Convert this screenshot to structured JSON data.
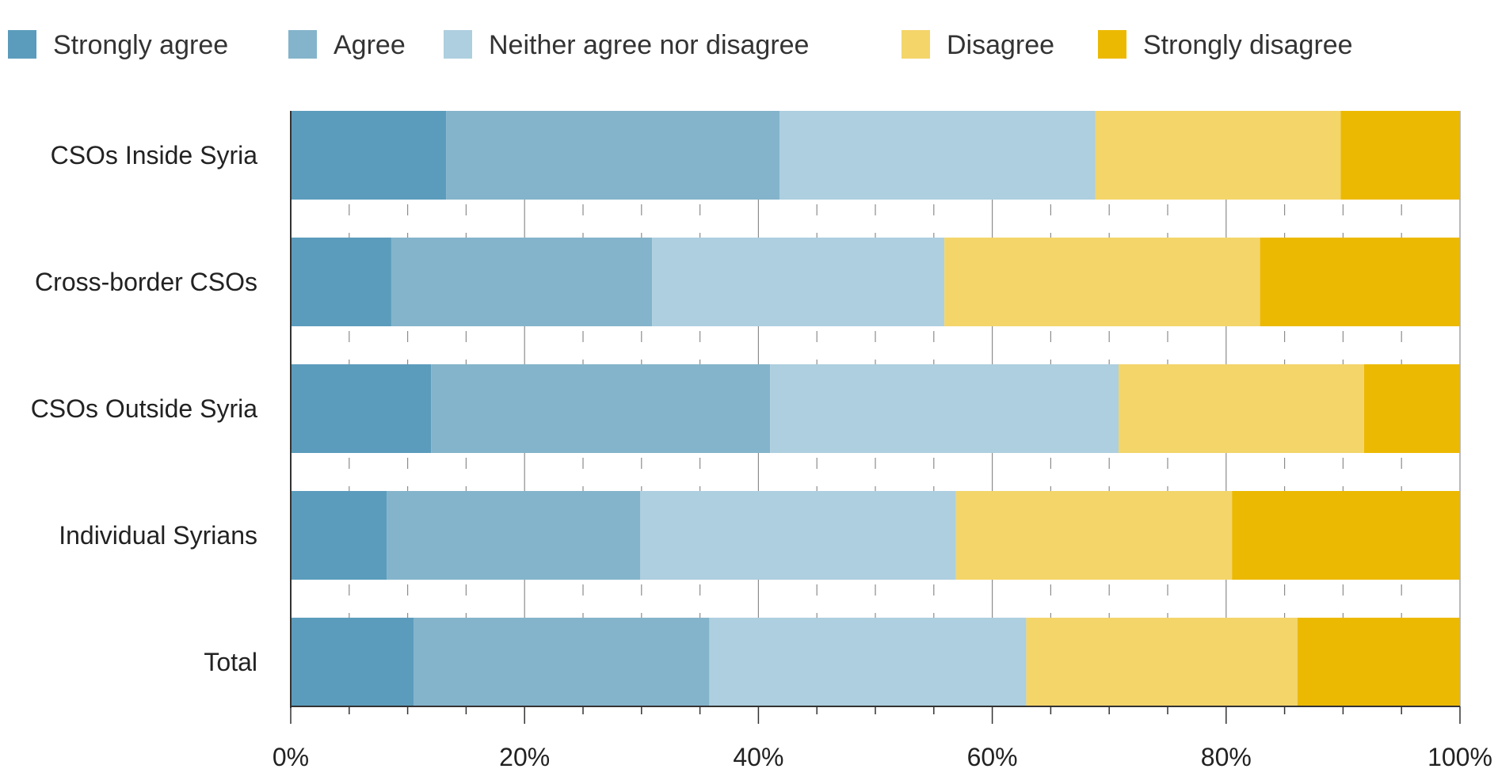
{
  "chart_data": {
    "type": "bar",
    "orientation": "horizontal",
    "stacked": true,
    "categories": [
      "CSOs Inside Syria",
      "Cross-border CSOs",
      "CSOs Outside Syria",
      "Individual Syrians",
      "Total"
    ],
    "series": [
      {
        "name": "Strongly agree",
        "color": "#5b9cbc",
        "values": [
          13.3,
          8.6,
          12.0,
          8.2,
          10.5
        ]
      },
      {
        "name": "Agree",
        "color": "#84b4cb",
        "values": [
          28.5,
          22.3,
          29.0,
          21.7,
          25.3
        ]
      },
      {
        "name": "Neither agree nor disagree",
        "color": "#adcfdf",
        "values": [
          27.0,
          25.0,
          29.8,
          27.0,
          27.1
        ]
      },
      {
        "name": "Disagree",
        "color": "#f4d56a",
        "values": [
          21.0,
          27.0,
          21.0,
          23.6,
          23.2
        ]
      },
      {
        "name": "Strongly disagree",
        "color": "#ecb902",
        "values": [
          10.2,
          17.1,
          8.2,
          19.5,
          13.9
        ]
      }
    ],
    "xlim": [
      0,
      100
    ],
    "x_ticks": [
      "0%",
      "20%",
      "40%",
      "60%",
      "80%",
      "100%"
    ],
    "grid": true,
    "legend_position": "top"
  }
}
